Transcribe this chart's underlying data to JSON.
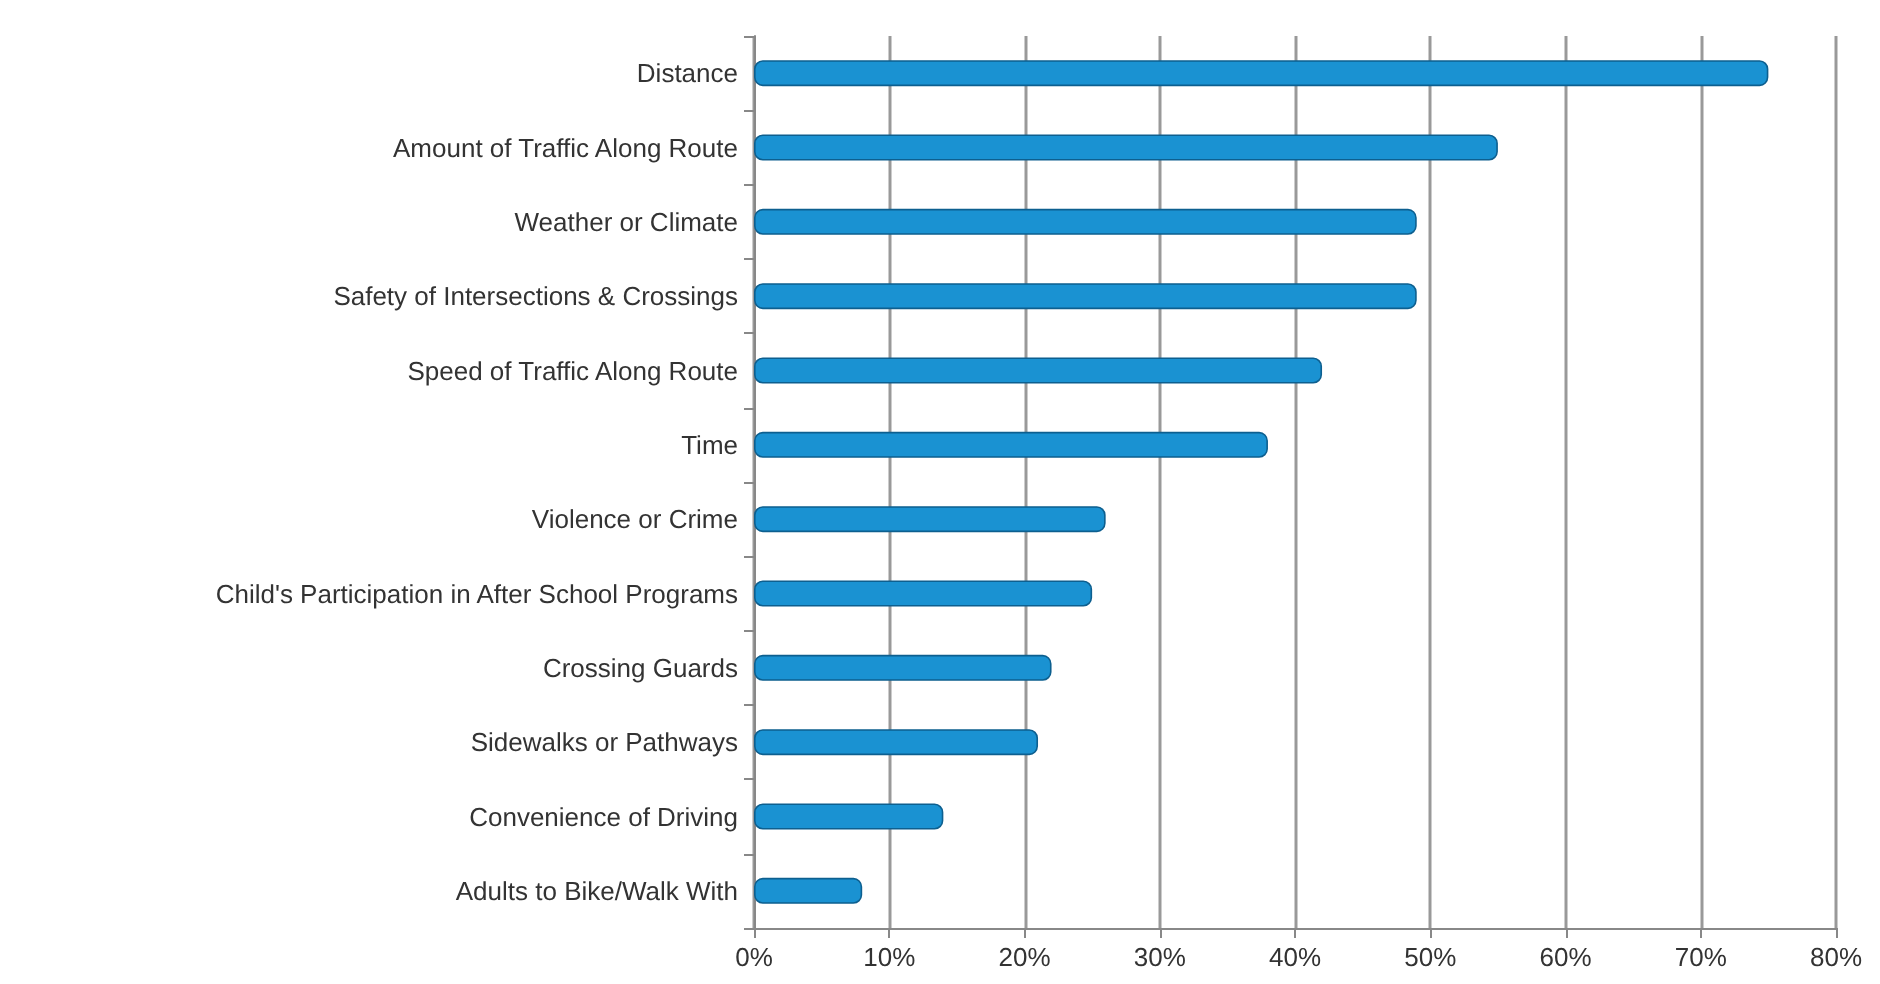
{
  "chart_data": {
    "type": "bar",
    "orientation": "horizontal",
    "categories": [
      "Distance",
      "Amount of Traffic Along Route",
      "Weather or Climate",
      "Safety of Intersections & Crossings",
      "Speed of Traffic Along Route",
      "Time",
      "Violence or Crime",
      "Child's Participation in After School Programs",
      "Crossing Guards",
      "Sidewalks or Pathways",
      "Convenience of Driving",
      "Adults to Bike/Walk With"
    ],
    "values": [
      75,
      55,
      49,
      49,
      42,
      38,
      26,
      25,
      22,
      21,
      14,
      8
    ],
    "color": "#1a92d2",
    "xlim": [
      0,
      80
    ],
    "xticks": [
      {
        "value": 0,
        "label": "0%"
      },
      {
        "value": 10,
        "label": "10%"
      },
      {
        "value": 20,
        "label": "20%"
      },
      {
        "value": 30,
        "label": "30%"
      },
      {
        "value": 40,
        "label": "40%"
      },
      {
        "value": 50,
        "label": "50%"
      },
      {
        "value": 60,
        "label": "60%"
      },
      {
        "value": 70,
        "label": "70%"
      },
      {
        "value": 80,
        "label": "80%"
      }
    ],
    "grid": "x"
  }
}
